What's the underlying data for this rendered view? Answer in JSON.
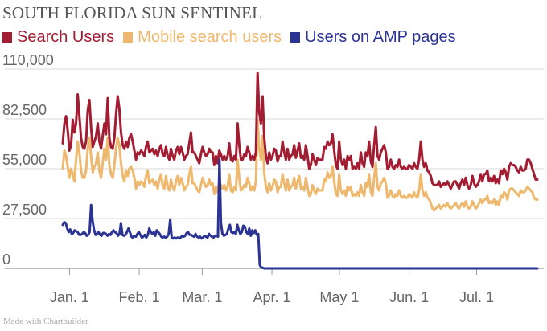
{
  "header": {
    "title": "SOUTH FLORIDA SUN SENTINEL"
  },
  "credit": "Made with Chartbuilder",
  "chart_data": {
    "type": "line",
    "title": "SOUTH FLORIDA SUN SENTINEL",
    "xlabel": "",
    "ylabel": "",
    "ylim": [
      0,
      110000
    ],
    "y_ticks": [
      0,
      27500,
      55000,
      82500,
      110000
    ],
    "y_tick_labels": [
      "0",
      "27,500",
      "55,000",
      "82,500",
      "110,000"
    ],
    "x_tick_labels": [
      "Jan. 1",
      "Feb. 1",
      "Mar. 1",
      "Apr. 1",
      "May 1",
      "Jun. 1",
      "Jul. 1"
    ],
    "x_tick_dates": [
      "2015-01-01",
      "2015-02-01",
      "2015-03-01",
      "2015-04-01",
      "2015-05-01",
      "2015-06-01",
      "2015-07-01"
    ],
    "x_range": [
      "2014-12-29",
      "2015-07-28"
    ],
    "grid": true,
    "legend_position": "top-left",
    "series_dates": [
      "2014-12-29",
      "2015-07-28"
    ],
    "series": [
      {
        "name": "Search Users",
        "color": "#a21d32",
        "values": [
          69000,
          80000,
          84000,
          76000,
          65000,
          68000,
          82000,
          75000,
          80000,
          96000,
          84000,
          72000,
          67000,
          66000,
          70000,
          87000,
          93000,
          78000,
          67000,
          70000,
          73000,
          80000,
          70000,
          66000,
          73000,
          80000,
          74000,
          94000,
          72000,
          67000,
          66000,
          72000,
          85000,
          95000,
          88000,
          75000,
          68000,
          66000,
          70000,
          67000,
          72000,
          74000,
          70000,
          65000,
          60000,
          64000,
          63000,
          65000,
          64000,
          62000,
          67000,
          70000,
          64000,
          65000,
          66000,
          63000,
          65000,
          62000,
          66000,
          68000,
          63000,
          62000,
          67000,
          62000,
          60000,
          66000,
          62000,
          60000,
          65000,
          67000,
          63000,
          67000,
          64000,
          60000,
          62000,
          63000,
          69000,
          75000,
          64000,
          64000,
          62000,
          60000,
          58000,
          63000,
          67000,
          64000,
          62000,
          63000,
          66000,
          64000,
          64000,
          57000,
          62000,
          58000,
          65000,
          63000,
          60000,
          62000,
          60000,
          62000,
          69000,
          60000,
          59000,
          62000,
          60000,
          80000,
          68000,
          60000,
          60000,
          63000,
          62000,
          67000,
          64000,
          60000,
          62000,
          60000,
          64000,
          108000,
          86000,
          80000,
          95000,
          72000,
          62000,
          58000,
          64000,
          60000,
          62000,
          66000,
          65000,
          59000,
          62000,
          62000,
          70000,
          64000,
          60000,
          66000,
          60000,
          62000,
          63000,
          68000,
          61000,
          65000,
          69000,
          61000,
          62000,
          60000,
          68000,
          62000,
          55000,
          57000,
          63000,
          60000,
          57000,
          61000,
          60000,
          60000,
          60000,
          67000,
          66000,
          70000,
          68000,
          69000,
          74000,
          65000,
          57000,
          55000,
          70000,
          60000,
          57000,
          60000,
          55000,
          62000,
          60000,
          62000,
          55000,
          56000,
          55000,
          58000,
          55000,
          64000,
          58000,
          56000,
          64000,
          62000,
          70000,
          59000,
          56000,
          68000,
          78000,
          62000,
          60000,
          64000,
          66000,
          68000,
          64000,
          55000,
          56000,
          60000,
          56000,
          55000,
          57000,
          56000,
          60000,
          56000,
          55000,
          56000,
          55000,
          55000,
          57000,
          56000,
          55000,
          58000,
          56000,
          55000,
          60000,
          70000,
          60000,
          56000,
          58000,
          54000,
          53000,
          51000,
          47000,
          46000,
          46000,
          46000,
          48000,
          45000,
          46000,
          47000,
          46000,
          48000,
          46000,
          44000,
          46000,
          48000,
          48000,
          46000,
          44000,
          47000,
          49000,
          46000,
          50000,
          46000,
          44000,
          46000,
          51000,
          47000,
          45000,
          46000,
          48000,
          52000,
          48000,
          52000,
          52000,
          54000,
          48000,
          50000,
          48000,
          51000,
          47000,
          49000,
          47000,
          54000,
          52000,
          55000,
          53000,
          49000,
          56000,
          58000,
          57000,
          57000,
          56000,
          54000,
          53000,
          56000,
          54000,
          54000,
          55000,
          60000,
          60000,
          58000,
          55000,
          52000,
          49000,
          49000
        ]
      },
      {
        "name": "Mobile search users",
        "color": "#eeb86f",
        "values": [
          55000,
          65000,
          62000,
          56000,
          50000,
          55000,
          52000,
          48000,
          60000,
          70000,
          64000,
          54000,
          50000,
          50000,
          54000,
          66000,
          72000,
          62000,
          53000,
          56000,
          58000,
          64000,
          54000,
          50000,
          58000,
          66000,
          60000,
          72000,
          57000,
          52000,
          50000,
          57000,
          66000,
          72000,
          68000,
          58000,
          51000,
          48000,
          54000,
          51000,
          55000,
          56000,
          54000,
          50000,
          44000,
          48000,
          46000,
          48000,
          47000,
          45000,
          51000,
          54000,
          47000,
          48000,
          49000,
          46000,
          48000,
          44000,
          49000,
          52000,
          46000,
          44000,
          51000,
          45000,
          43000,
          49000,
          45000,
          43000,
          48000,
          51000,
          46000,
          50000,
          47000,
          43000,
          45000,
          46000,
          52000,
          56000,
          47000,
          47000,
          45000,
          43000,
          42000,
          46000,
          50000,
          47000,
          45000,
          46000,
          49000,
          46000,
          47000,
          41000,
          45000,
          42000,
          48000,
          46000,
          44000,
          46000,
          43000,
          45000,
          52000,
          43000,
          42000,
          45000,
          43000,
          60000,
          50000,
          43000,
          44000,
          46000,
          45000,
          50000,
          47000,
          43000,
          45000,
          43000,
          48000,
          82000,
          66000,
          60000,
          73000,
          53000,
          45000,
          42000,
          47000,
          43000,
          45000,
          49000,
          48000,
          42000,
          45000,
          45000,
          52000,
          47000,
          43000,
          49000,
          43000,
          45000,
          46000,
          50000,
          44000,
          48000,
          51000,
          44000,
          45000,
          43000,
          50000,
          45000,
          40000,
          41000,
          46000,
          43000,
          41000,
          44000,
          43000,
          43000,
          43000,
          49000,
          48000,
          53000,
          50000,
          51000,
          56000,
          48000,
          41000,
          40000,
          52000,
          43000,
          41000,
          43000,
          40000,
          45000,
          43000,
          45000,
          40000,
          41000,
          40000,
          42000,
          40000,
          46000,
          42000,
          40000,
          47000,
          45000,
          52000,
          42000,
          40000,
          50000,
          58000,
          45000,
          43000,
          47000,
          48000,
          50000,
          47000,
          39000,
          40000,
          43000,
          40000,
          39000,
          41000,
          40000,
          43000,
          40000,
          39000,
          40000,
          39000,
          39000,
          41000,
          40000,
          39000,
          42000,
          40000,
          39000,
          43000,
          52000,
          43000,
          40000,
          42000,
          39000,
          38000,
          36000,
          33000,
          32000,
          33000,
          34000,
          35000,
          33000,
          34000,
          35000,
          34000,
          36000,
          34000,
          33000,
          34000,
          35000,
          36000,
          34000,
          33000,
          35000,
          36000,
          34000,
          37000,
          34000,
          33000,
          34000,
          37000,
          35000,
          33000,
          34000,
          36000,
          38000,
          36000,
          38000,
          38000,
          40000,
          36000,
          37000,
          36000,
          38000,
          35000,
          37000,
          35000,
          40000,
          39000,
          42000,
          41000,
          38000,
          43000,
          44000,
          44000,
          43000,
          42000,
          41000,
          40000,
          43000,
          42000,
          42000,
          43000,
          45000,
          44000,
          43000,
          42000,
          39000,
          38000,
          38000
        ]
      },
      {
        "name": "Users on AMP pages",
        "color": "#2b3494",
        "values": [
          24000,
          25500,
          25000,
          22000,
          20000,
          21500,
          19000,
          19500,
          21000,
          20500,
          20000,
          18500,
          18500,
          19000,
          20000,
          19500,
          18000,
          18500,
          20000,
          35000,
          26000,
          21000,
          18500,
          19000,
          20000,
          18500,
          18000,
          19500,
          19500,
          19000,
          18000,
          19000,
          18500,
          20000,
          21000,
          20000,
          19500,
          18000,
          19000,
          25000,
          18500,
          18000,
          18500,
          20000,
          22000,
          20000,
          17500,
          17000,
          18000,
          17500,
          19000,
          20000,
          18500,
          17000,
          17500,
          18500,
          17000,
          18500,
          22000,
          20000,
          19000,
          20000,
          18000,
          21000,
          20000,
          19000,
          17500,
          17000,
          17500,
          17000,
          17500,
          19000,
          27000,
          17000,
          16500,
          17000,
          16500,
          17000,
          16500,
          17000,
          18000,
          17500,
          18000,
          19500,
          20000,
          18500,
          18500,
          18000,
          17500,
          19000,
          17500,
          17000,
          17500,
          16500,
          17000,
          18000,
          17500,
          17000,
          19000,
          18000,
          17500,
          17000,
          18000,
          18000,
          17500,
          60000,
          25000,
          19000,
          18000,
          18500,
          19000,
          22000,
          24000,
          20000,
          19500,
          20000,
          19000,
          24000,
          21000,
          19000,
          20000,
          23500,
          23000,
          20000,
          19000,
          22000,
          18000,
          21000,
          19500,
          21000,
          18500,
          19000,
          2000,
          500,
          300,
          0,
          0,
          0,
          0,
          0,
          0,
          0,
          0,
          0,
          0,
          0,
          0,
          0,
          0,
          0,
          0,
          0,
          0,
          0,
          0,
          0,
          0,
          0,
          0,
          0,
          0,
          0,
          0,
          0,
          0,
          0,
          0,
          0,
          0,
          0,
          0,
          0,
          0,
          0,
          0,
          0,
          0,
          0,
          0,
          0,
          0,
          0,
          0,
          0,
          0,
          0,
          0,
          0,
          0,
          0,
          0,
          0,
          0,
          0,
          0,
          0,
          0,
          0,
          0,
          0,
          0,
          0,
          0,
          0,
          0,
          0,
          0,
          0,
          0,
          0,
          0,
          0,
          0,
          0,
          0,
          0,
          0,
          0,
          0,
          0,
          0,
          0,
          0,
          0,
          0,
          0,
          0,
          0,
          0,
          0,
          0,
          0,
          0,
          0,
          0,
          0,
          0,
          0,
          0,
          0,
          0,
          0,
          0,
          0,
          0,
          0,
          0,
          0,
          0,
          0,
          0,
          0,
          0,
          0,
          0,
          0,
          0,
          0,
          0,
          0,
          0,
          0,
          0,
          0,
          0,
          0,
          0,
          0,
          0,
          0,
          0,
          0,
          0,
          0,
          0,
          0,
          0,
          0,
          0,
          0,
          0,
          0,
          0,
          0,
          0,
          0,
          0,
          0,
          0,
          0,
          0,
          0,
          0,
          0,
          0,
          0,
          0,
          0,
          0,
          0,
          0,
          0,
          0,
          0,
          0,
          0,
          0,
          0,
          0,
          0,
          0,
          0,
          0,
          0,
          0,
          0,
          0,
          0,
          0
        ]
      }
    ]
  }
}
